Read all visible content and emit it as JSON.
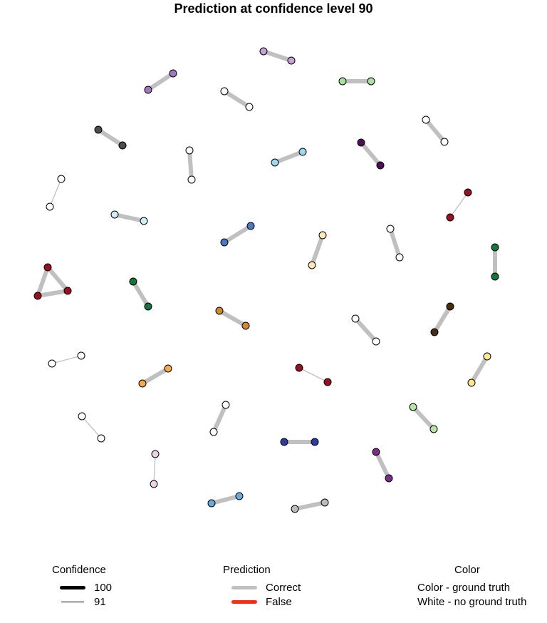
{
  "title": "Prediction at confidence level 90",
  "colors": {
    "correct": "#c0c0c0",
    "false": "#ff2a14",
    "node_stroke": "#000000",
    "no_ground_truth": "#ffffff"
  },
  "legend": {
    "confidence": {
      "title": "Confidence",
      "items": [
        {
          "label": "100",
          "meaning": "thick line"
        },
        {
          "label": "91",
          "meaning": "thin line"
        }
      ]
    },
    "prediction": {
      "title": "Prediction",
      "items": [
        {
          "label": "Correct",
          "color": "#c0c0c0"
        },
        {
          "label": "False",
          "color": "#ff2a14"
        }
      ]
    },
    "color": {
      "title": "Color",
      "items": [
        {
          "label": "Color - ground truth"
        },
        {
          "label": "White - no ground truth"
        }
      ]
    }
  },
  "graph": {
    "node_colors": {
      "lilac": "#c5a3d4",
      "purple": "#a277bf",
      "white": "#ffffff",
      "lightgreen": "#a9dfa0",
      "darkgray": "#4d4d4d",
      "lightblue": "#9ed8ec",
      "darkpurple": "#4b0f55",
      "red": "#9b1020",
      "paleblue": "#cfeff7",
      "blue": "#4a7bc1",
      "cream": "#fde9b5",
      "green": "#11763a",
      "orange": "#d38a2e",
      "darkbrown": "#4a2c0a",
      "lightorange": "#f9a94b",
      "paleyellow": "#ffe88e",
      "palegreen": "#b8e5a6",
      "lightpink": "#ead3e6",
      "navy": "#2c3ba4",
      "magenta": "#7b2d8e",
      "steelblue": "#6aaadc",
      "gray": "#bdbdbd"
    }
  }
}
